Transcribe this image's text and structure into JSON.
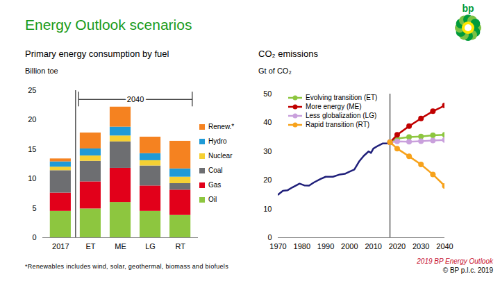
{
  "title": "Energy Outlook scenarios",
  "logo_text": "bp",
  "footnote": "*Renewables includes wind, solar, geothermal, biomass and biofuels",
  "source": "2019 BP Energy Outlook",
  "copyright": "© BP p.l.c. 2019",
  "chart_data": [
    {
      "type": "bar",
      "title": "Primary energy consumption by fuel",
      "ylabel": "Billion toe",
      "annotation": "2040",
      "stacked": true,
      "legend": "right",
      "grid": false,
      "categories": [
        "2017",
        "ET",
        "ME",
        "LG",
        "RT"
      ],
      "ylim": [
        0,
        25
      ],
      "yticks": [
        0,
        5,
        10,
        15,
        20,
        25
      ],
      "series": [
        {
          "name": "Oil",
          "color": "#8dc63f",
          "values": [
            4.5,
            4.9,
            6.0,
            4.5,
            3.8
          ]
        },
        {
          "name": "Gas",
          "color": "#e2001a",
          "values": [
            3.1,
            4.6,
            5.8,
            4.3,
            4.3
          ]
        },
        {
          "name": "Coal",
          "color": "#6d6e71",
          "values": [
            3.8,
            3.5,
            4.5,
            3.4,
            1.1
          ]
        },
        {
          "name": "Nuclear",
          "color": "#f5d033",
          "values": [
            0.6,
            0.9,
            1.0,
            0.9,
            1.1
          ]
        },
        {
          "name": "Hydro",
          "color": "#1f9ad6",
          "values": [
            0.9,
            1.2,
            1.5,
            1.2,
            1.4
          ]
        },
        {
          "name": "Renew.*",
          "color": "#f58220",
          "values": [
            0.5,
            2.7,
            3.4,
            2.8,
            4.7
          ]
        }
      ]
    },
    {
      "type": "line",
      "title": "CO₂ emissions",
      "ylabel": "Gt of CO₂",
      "legend": "top-left",
      "grid": false,
      "xlim": [
        1970,
        2040
      ],
      "xticks": [
        1970,
        1980,
        1990,
        2000,
        2010,
        2020,
        2030,
        2040
      ],
      "ylim": [
        0,
        50
      ],
      "yticks": [
        0,
        10,
        20,
        30,
        40,
        50
      ],
      "series": [
        {
          "color": "#1f1f7a",
          "line_style": "solid",
          "marker": "none",
          "x": [
            1970,
            1972,
            1974,
            1976,
            1979,
            1981,
            1983,
            1985,
            1988,
            1990,
            1993,
            1996,
            1998,
            2000,
            2002,
            2004,
            2006,
            2008,
            2009,
            2010,
            2012,
            2014,
            2016,
            2017
          ],
          "values": [
            15.0,
            16.3,
            16.5,
            17.5,
            18.8,
            18.2,
            18.1,
            19.2,
            20.5,
            21.2,
            21.2,
            22.0,
            22.2,
            23.0,
            23.7,
            26.5,
            28.5,
            30.0,
            29.5,
            31.0,
            32.0,
            32.8,
            32.8,
            33.2
          ]
        },
        {
          "name": "Evolving transition (ET)",
          "color": "#8dc63f",
          "line_style": "solid",
          "marker": "circle",
          "x": [
            2017,
            2020,
            2025,
            2030,
            2035,
            2040
          ],
          "values": [
            33.2,
            34.5,
            35.0,
            35.2,
            35.6,
            35.8
          ]
        },
        {
          "name": "More energy (ME)",
          "color": "#c00000",
          "line_style": "solid",
          "marker": "circle",
          "x": [
            2017,
            2020,
            2025,
            2030,
            2035,
            2040
          ],
          "values": [
            33.2,
            35.8,
            38.8,
            41.5,
            44.0,
            46.0
          ]
        },
        {
          "name": "Less globalization (LG)",
          "color": "#c9a0dc",
          "line_style": "solid",
          "marker": "circle",
          "x": [
            2017,
            2020,
            2025,
            2030,
            2035,
            2040
          ],
          "values": [
            33.2,
            33.5,
            33.4,
            33.6,
            33.8,
            34.0
          ]
        },
        {
          "name": "Rapid transition (RT)",
          "color": "#f7a21b",
          "line_style": "solid",
          "marker": "circle",
          "x": [
            2017,
            2020,
            2025,
            2030,
            2035,
            2040
          ],
          "values": [
            33.2,
            31.0,
            28.3,
            25.5,
            22.0,
            18.0
          ]
        }
      ]
    }
  ]
}
